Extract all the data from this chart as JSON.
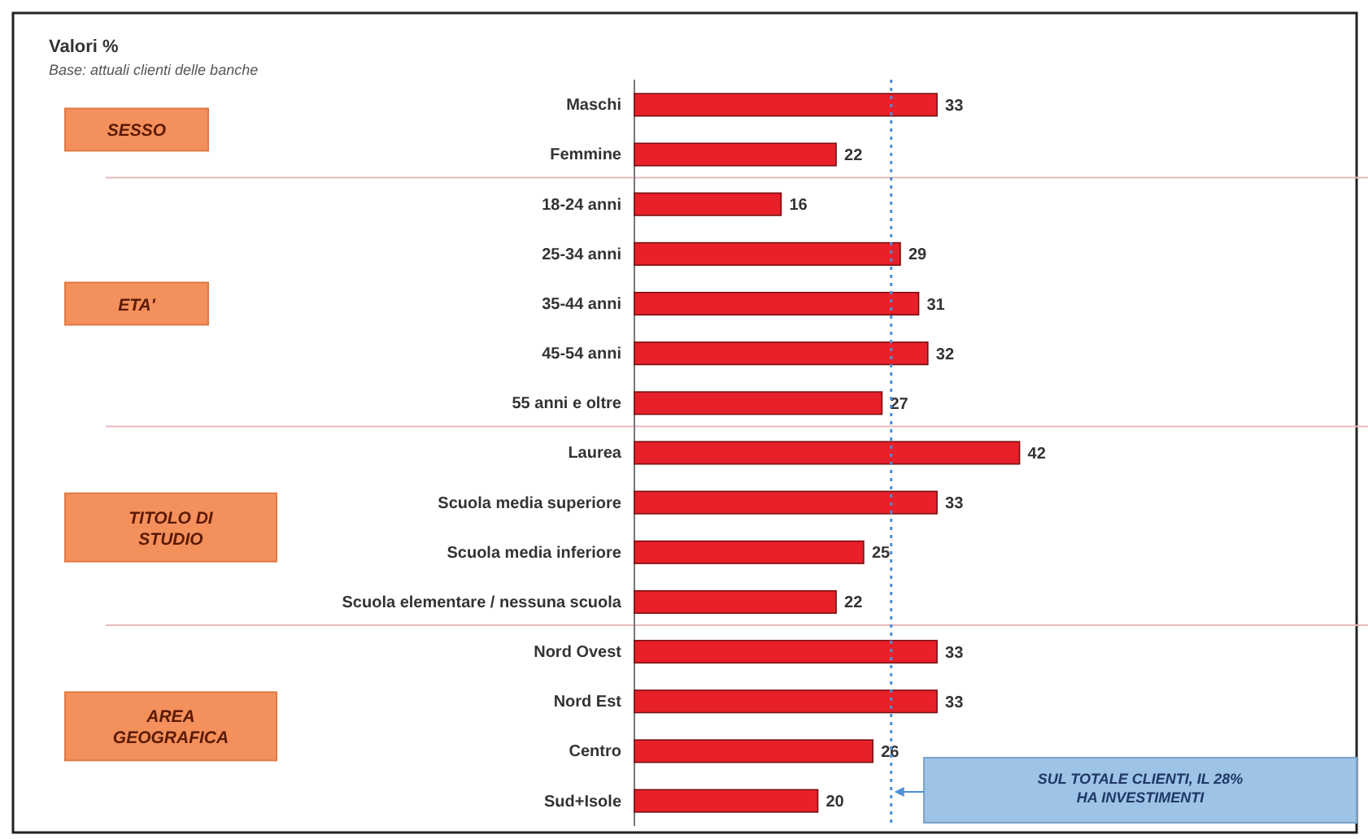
{
  "chart_data": {
    "type": "bar",
    "orientation": "horizontal",
    "title": "Valori %",
    "subtitle": "Base: attuali clienti delle banche",
    "categories": [
      "Maschi",
      "Femmine",
      "18-24 anni",
      "25-34 anni",
      "35-44 anni",
      "45-54 anni",
      "55 anni e oltre",
      "Laurea",
      "Scuola media superiore",
      "Scuola media inferiore",
      "Scuola elementare / nessuna scuola",
      "Nord Ovest",
      "Nord Est",
      "Centro",
      "Sud+Isole"
    ],
    "values": [
      33,
      22,
      16,
      29,
      31,
      32,
      27,
      42,
      33,
      25,
      22,
      33,
      33,
      26,
      20
    ],
    "color": "#e8202a",
    "xlim": [
      0,
      80
    ],
    "tick_labels": "y",
    "data_labels": true,
    "ref_lines": [
      {
        "axis": "x",
        "value": 28,
        "color": "#4a90d9",
        "line_style": "dotted"
      }
    ],
    "annotations": [
      "SESSO",
      "ETA'",
      "TITOLO DI STUDIO",
      "AREA GEOGRAFICA",
      "SUL TOTALE CLIENTI, IL 28% HA INVESTIMENTI"
    ]
  }
}
